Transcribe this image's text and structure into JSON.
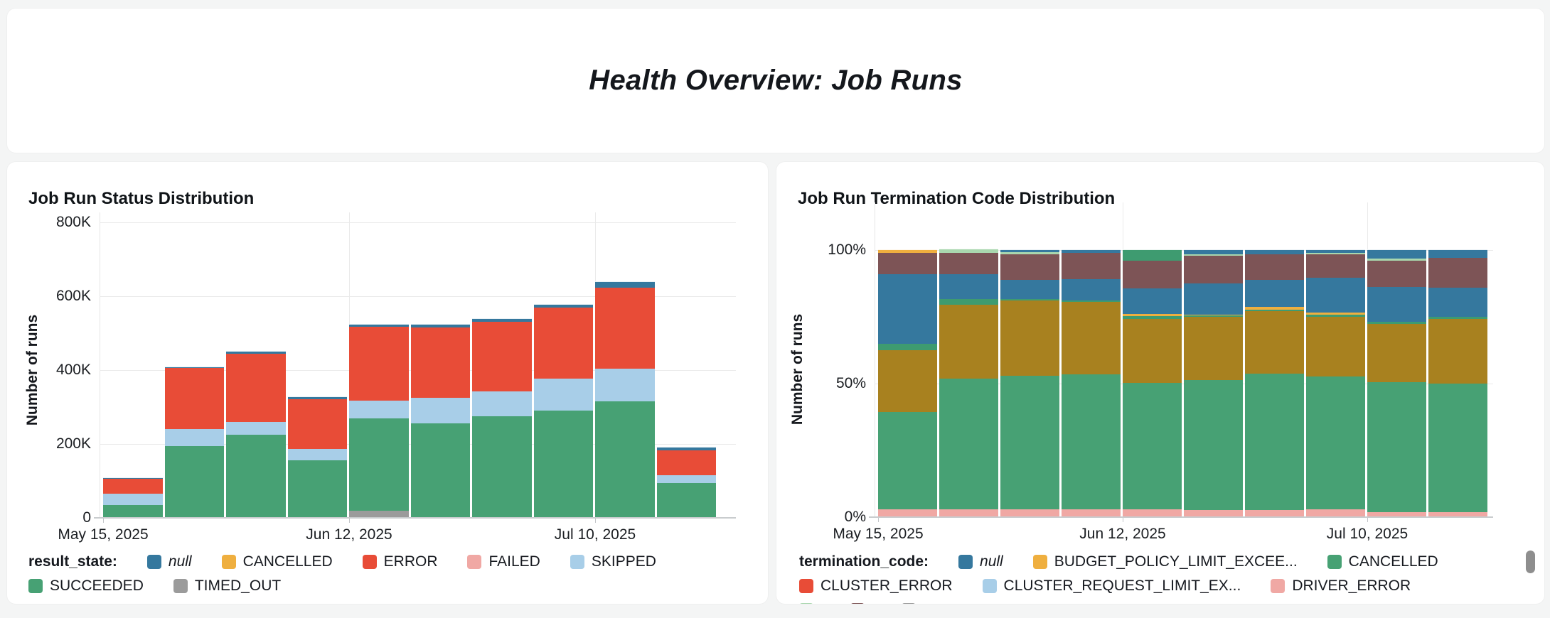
{
  "page": {
    "title": "Health Overview: Job Runs",
    "background": "#F4F5F5",
    "card_background": "#FFFFFF",
    "scrollbar_color": "#8E8E8E"
  },
  "palette": {
    "steel_blue": "#35789E",
    "yellow": "#EFAF3F",
    "red": "#E84C37",
    "pink": "#F0A8A4",
    "light_blue": "#A8CEE8",
    "green": "#47A174",
    "gray": "#9B9B9B",
    "dark_gold": "#A8811F",
    "maroon": "#7D5456",
    "light_green": "#A9D7AE",
    "mid_green": "#3E9B70",
    "grid": "#EAEAEA",
    "axis": "#C9CCCE",
    "text": "#16191F"
  },
  "chart_data": [
    {
      "type": "bar",
      "stacked": true,
      "percent": false,
      "title": "Job Run Status Distribution",
      "ylabel": "Number of runs",
      "xlabel": "",
      "ylim": [
        0,
        800000
      ],
      "ytick_labels": [
        "0",
        "200K",
        "400K",
        "600K",
        "800K"
      ],
      "x_tick_labels": [
        "May 15, 2025",
        "Jun 12, 2025",
        "Jul 10, 2025"
      ],
      "x_tick_slots": [
        0,
        4,
        8
      ],
      "n_bars": 10,
      "grid": true,
      "legend_position": "bottom",
      "legend_title": "result_state:",
      "legend_rows": [
        [
          {
            "label": "null",
            "color": "steel_blue",
            "italic": true
          },
          {
            "label": "CANCELLED",
            "color": "yellow"
          },
          {
            "label": "ERROR",
            "color": "red"
          },
          {
            "label": "FAILED",
            "color": "pink"
          },
          {
            "label": "SKIPPED",
            "color": "light_blue"
          }
        ],
        [
          {
            "label": "SUCCEEDED",
            "color": "green"
          },
          {
            "label": "TIMED_OUT",
            "color": "gray"
          }
        ]
      ],
      "series": [
        {
          "label": "TIMED_OUT",
          "color": "gray",
          "values": [
            0,
            0,
            0,
            0,
            20000,
            0,
            0,
            0,
            0,
            0
          ]
        },
        {
          "label": "SUCCEEDED",
          "color": "green",
          "values": [
            35000,
            195000,
            225000,
            155000,
            250000,
            255000,
            275000,
            290000,
            315000,
            94000
          ]
        },
        {
          "label": "SKIPPED",
          "color": "light_blue",
          "values": [
            30000,
            45000,
            35000,
            32000,
            48000,
            70000,
            67000,
            87000,
            88000,
            21000
          ]
        },
        {
          "label": "ERROR",
          "color": "red",
          "values": [
            40000,
            165000,
            185000,
            135000,
            200000,
            190000,
            188000,
            192000,
            220000,
            67000
          ]
        },
        {
          "label": "null",
          "color": "steel_blue",
          "values": [
            2000,
            3000,
            5000,
            6000,
            5000,
            8000,
            8000,
            8000,
            16000,
            8000
          ]
        }
      ]
    },
    {
      "type": "bar",
      "stacked": true,
      "percent": true,
      "title": "Job Run Termination Code Distribution",
      "ylabel": "Number of runs",
      "xlabel": "",
      "ylim": [
        0,
        100
      ],
      "ytick_labels": [
        "0%",
        "50%",
        "100%"
      ],
      "x_tick_labels": [
        "May 15, 2025",
        "Jun 12, 2025",
        "Jul 10, 2025"
      ],
      "x_tick_slots": [
        0,
        4,
        8
      ],
      "n_bars": 10,
      "grid": true,
      "legend_position": "bottom",
      "legend_title": "termination_code:",
      "legend_rows": [
        [
          {
            "label": "null",
            "color": "steel_blue",
            "italic": true
          },
          {
            "label": "BUDGET_POLICY_LIMIT_EXCEE...",
            "color": "yellow"
          },
          {
            "label": "CANCELLED",
            "color": "green"
          }
        ],
        [
          {
            "label": "CLUSTER_ERROR",
            "color": "red"
          },
          {
            "label": "CLUSTER_REQUEST_LIMIT_EX...",
            "color": "light_blue"
          },
          {
            "label": "DRIVER_ERROR",
            "color": "pink"
          }
        ],
        [
          {
            "label": "",
            "color": "light_green"
          },
          {
            "label": "",
            "color": "maroon"
          },
          {
            "label": "",
            "color": "gray"
          }
        ]
      ],
      "series": [
        {
          "label": "DRIVER_ERROR",
          "color": "pink",
          "values": [
            3,
            3,
            3,
            3,
            3,
            2.8,
            2.8,
            3,
            2,
            1.9
          ]
        },
        {
          "label": "CANCELLED",
          "color": "green",
          "values": [
            36.5,
            49,
            50,
            50.5,
            47.3,
            48.6,
            50.9,
            49.6,
            48.6,
            48
          ]
        },
        {
          "label": "",
          "color": "dark_gold",
          "values": [
            23,
            27.6,
            28,
            27,
            24,
            23.5,
            23.5,
            22.5,
            21.7,
            24.3
          ]
        },
        {
          "label": "",
          "color": "mid_green",
          "values": [
            2.5,
            2,
            0.6,
            0.7,
            0.9,
            0.6,
            0.6,
            0.7,
            0.9,
            0.9
          ]
        },
        {
          "label": "BUDGET_POLICY_LIMIT_EXCEE...",
          "color": "yellow",
          "values": [
            0,
            0,
            0,
            0,
            1,
            0.4,
            0.9,
            0.9,
            0,
            0
          ]
        },
        {
          "label": "",
          "color": "steel_blue",
          "values": [
            26,
            9.5,
            7.3,
            7.8,
            9.4,
            11.5,
            10.2,
            13,
            13,
            10.7
          ]
        },
        {
          "label": "",
          "color": "maroon",
          "values": [
            8,
            7.8,
            9.5,
            10,
            10.4,
            10.5,
            9.6,
            8.6,
            9.9,
            11.2
          ]
        },
        {
          "label": "",
          "color": "light_green",
          "values": [
            0,
            1.3,
            0.8,
            0,
            0,
            0.6,
            0,
            0.7,
            0.7,
            0
          ]
        },
        {
          "label": "",
          "color": "mid_green",
          "values": [
            0,
            0,
            0,
            0,
            4,
            0,
            0,
            0,
            0,
            0
          ]
        },
        {
          "label": "null",
          "color": "steel_blue",
          "values": [
            0,
            0,
            0.8,
            1,
            0,
            1.5,
            1.5,
            1,
            3.2,
            3
          ]
        },
        {
          "label": "",
          "color": "yellow",
          "values": [
            1,
            0,
            0,
            0,
            0,
            0,
            0,
            0,
            0,
            0
          ]
        }
      ]
    }
  ]
}
